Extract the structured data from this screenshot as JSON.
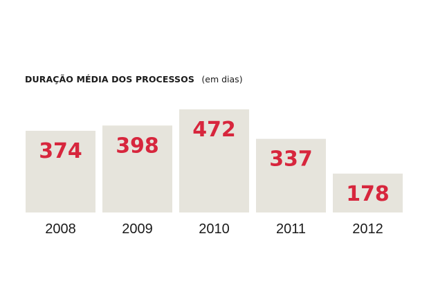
{
  "chart_data": {
    "type": "bar",
    "title": "DURAÇÃO MÉDIA DOS PROCESSOS",
    "subtitle": "(em dias)",
    "categories": [
      "2008",
      "2009",
      "2010",
      "2011",
      "2012"
    ],
    "values": [
      374,
      398,
      472,
      337,
      178
    ],
    "xlabel": "",
    "ylabel": "",
    "grid": false,
    "colors": {
      "bar": "#e6e4dc",
      "value_label": "#d7263d",
      "tick_label": "#1a1a1a"
    }
  }
}
